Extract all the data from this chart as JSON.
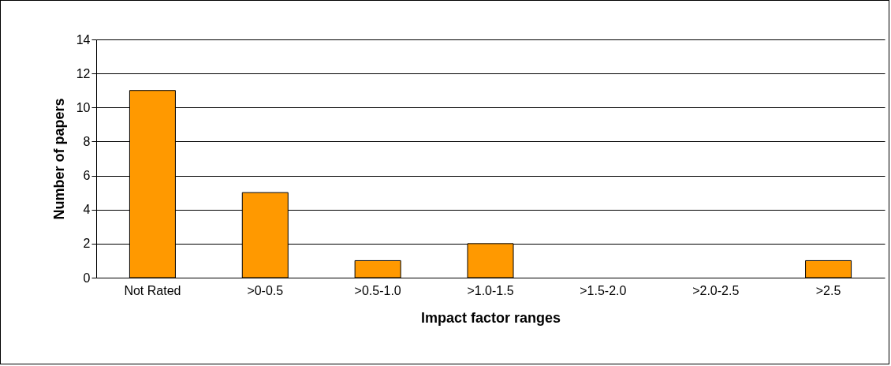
{
  "chart_data": {
    "type": "bar",
    "xlabel": "Impact factor ranges",
    "ylabel": "Number of papers",
    "categories": [
      "Not Rated",
      ">0-0.5",
      ">0.5-1.0",
      ">1.0-1.5",
      ">1.5-2.0",
      ">2.0-2.5",
      ">2.5"
    ],
    "values": [
      11,
      5,
      1,
      2,
      0,
      0,
      1
    ],
    "color": "#ff9900",
    "ylim": [
      0,
      14
    ],
    "yticks": [
      0,
      2,
      4,
      6,
      8,
      10,
      12,
      14
    ],
    "grid": "y"
  }
}
